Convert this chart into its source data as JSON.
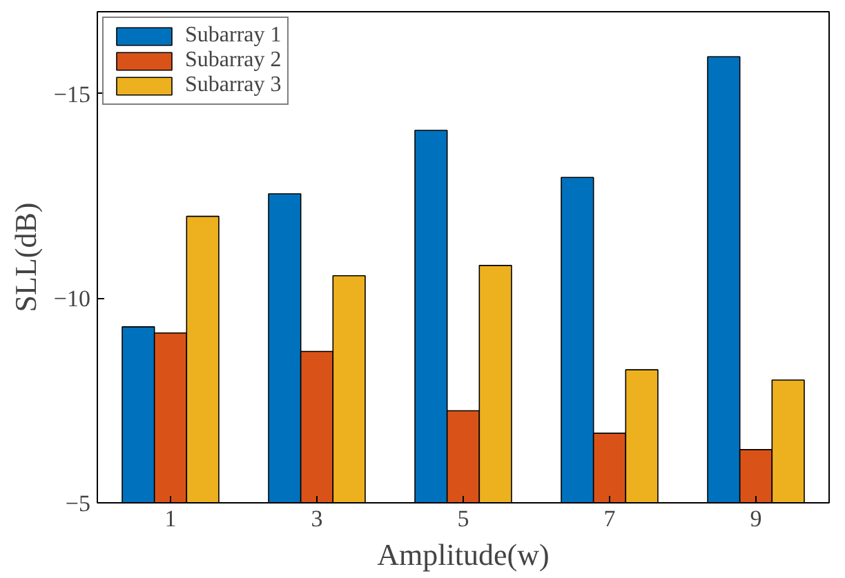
{
  "chart_data": {
    "type": "bar",
    "xlabel": "Amplitude(w)",
    "ylabel": "SLL(dB)",
    "categories": [
      "1",
      "3",
      "5",
      "7",
      "9"
    ],
    "series": [
      {
        "name": "Subarray 1",
        "color": "#0072bd",
        "values": [
          -9.3,
          -12.55,
          -14.1,
          -12.95,
          -15.9
        ]
      },
      {
        "name": "Subarray 2",
        "color": "#d95319",
        "values": [
          -9.15,
          -8.7,
          -7.25,
          -6.7,
          -6.3
        ]
      },
      {
        "name": "Subarray 3",
        "color": "#edb120",
        "values": [
          -12.0,
          -10.55,
          -10.8,
          -8.25,
          -8.0
        ]
      }
    ],
    "ylim": [
      -5,
      -17
    ],
    "yticks": [
      -5,
      -10,
      -15
    ],
    "legend": "top left",
    "grid": false
  }
}
